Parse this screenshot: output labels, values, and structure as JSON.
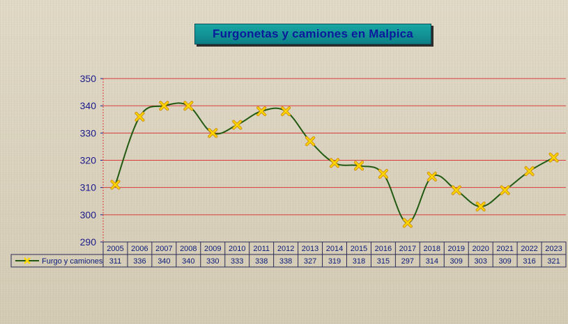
{
  "chart_data": {
    "type": "line",
    "title": "Furgonetas y camiones  en Malpica",
    "xlabel": "",
    "ylabel": "",
    "ylim": [
      290,
      350
    ],
    "yticks": [
      290,
      300,
      310,
      320,
      330,
      340,
      350
    ],
    "categories": [
      "2005",
      "2006",
      "2007",
      "2008",
      "2009",
      "2010",
      "2011",
      "2012",
      "2013",
      "2014",
      "2015",
      "2016",
      "2017",
      "2018",
      "2019",
      "2020",
      "2021",
      "2022",
      "2023"
    ],
    "series": [
      {
        "name": "Furgo y camiones",
        "values": [
          311,
          336,
          340,
          340,
          330,
          333,
          338,
          338,
          327,
          319,
          318,
          315,
          297,
          314,
          309,
          303,
          309,
          316,
          321
        ]
      }
    ],
    "grid": true,
    "legend": "data-table-left",
    "colors": {
      "line": "#1f5a10",
      "marker_fill": "#ffd800",
      "marker_stroke": "#d08a00",
      "grid": "#d83a3a",
      "axis": "#1a1a8a"
    }
  }
}
